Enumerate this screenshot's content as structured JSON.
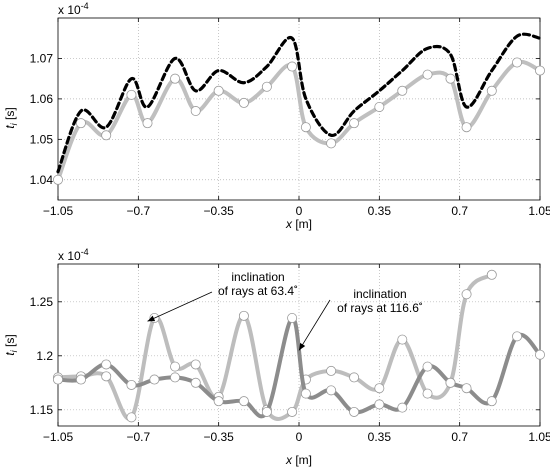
{
  "chart_data": [
    {
      "type": "line",
      "multiplier_label": "x 10",
      "multiplier_exp": "-4",
      "xlabel_var": "x",
      "xlabel_unit": " [m]",
      "ylabel_var": "t",
      "ylabel_sub": "i",
      "ylabel_unit": " [s]",
      "xlim": [
        -1.05,
        1.05
      ],
      "ylim": [
        1.035,
        1.08
      ],
      "xticks": [
        -1.05,
        -0.7,
        -0.35,
        0,
        0.35,
        0.7,
        1.05
      ],
      "xtick_labels": [
        "−1.05",
        "−0.7",
        "−0.35",
        "0",
        "0.35",
        "0.7",
        "1.05"
      ],
      "yticks": [
        1.04,
        1.05,
        1.06,
        1.07
      ],
      "ytick_labels": [
        "1.04",
        "1.05",
        "1.06",
        "1.07"
      ],
      "grid": true,
      "series": [
        {
          "style": "dashed-black",
          "color": "#000000",
          "x": [
            -1.05,
            -0.95,
            -0.84,
            -0.73,
            -0.66,
            -0.54,
            -0.45,
            -0.35,
            -0.24,
            -0.14,
            -0.03,
            0.03,
            0.14,
            0.24,
            0.35,
            0.45,
            0.56,
            0.66,
            0.73,
            0.84,
            0.95,
            1.05
          ],
          "values": [
            1.042,
            1.057,
            1.053,
            1.065,
            1.058,
            1.07,
            1.062,
            1.067,
            1.064,
            1.068,
            1.075,
            1.06,
            1.051,
            1.057,
            1.062,
            1.067,
            1.0725,
            1.071,
            1.058,
            1.067,
            1.0755,
            1.075
          ]
        },
        {
          "style": "solid-gray-markers",
          "color": "#bfbfbf",
          "x": [
            -1.05,
            -0.95,
            -0.84,
            -0.73,
            -0.66,
            -0.54,
            -0.45,
            -0.35,
            -0.24,
            -0.14,
            -0.03,
            0.03,
            0.14,
            0.24,
            0.35,
            0.45,
            0.56,
            0.66,
            0.73,
            0.84,
            0.95,
            1.05
          ],
          "values": [
            1.04,
            1.054,
            1.051,
            1.061,
            1.054,
            1.065,
            1.057,
            1.062,
            1.059,
            1.063,
            1.068,
            1.053,
            1.049,
            1.054,
            1.058,
            1.062,
            1.066,
            1.065,
            1.053,
            1.062,
            1.069,
            1.067
          ]
        }
      ]
    },
    {
      "type": "line",
      "multiplier_label": "x 10",
      "multiplier_exp": "-4",
      "xlabel_var": "x",
      "xlabel_unit": " [m]",
      "ylabel_var": "t",
      "ylabel_sub": "i",
      "ylabel_unit": " [s]",
      "xlim": [
        -1.05,
        1.05
      ],
      "ylim": [
        1.135,
        1.285
      ],
      "xticks": [
        -1.05,
        -0.7,
        -0.35,
        0,
        0.35,
        0.7,
        1.05
      ],
      "xtick_labels": [
        "−1.05",
        "−0.7",
        "−0.35",
        "0",
        "0.35",
        "0.7",
        "1.05"
      ],
      "yticks": [
        1.15,
        1.2,
        1.25
      ],
      "ytick_labels": [
        "1.15",
        "1.2",
        "1.25"
      ],
      "grid": true,
      "series": [
        {
          "style": "solid-lightgray-markers",
          "color": "#bdbdbd",
          "x": [
            -1.05,
            -0.95,
            -0.84,
            -0.73,
            -0.63,
            -0.54,
            -0.45,
            -0.35,
            -0.24,
            -0.14,
            -0.03,
            0.03,
            0.14,
            0.24,
            0.35,
            0.45,
            0.56,
            0.66,
            0.73,
            0.84
          ],
          "values": [
            1.18,
            1.181,
            1.181,
            1.143,
            1.235,
            1.19,
            1.192,
            1.162,
            1.237,
            1.15,
            1.148,
            1.178,
            1.186,
            1.18,
            1.17,
            1.215,
            1.165,
            1.175,
            1.257,
            1.275
          ]
        },
        {
          "style": "solid-darkgray-markers",
          "color": "#8c8c8c",
          "x": [
            -1.05,
            -0.95,
            -0.84,
            -0.73,
            -0.63,
            -0.54,
            -0.45,
            -0.35,
            -0.24,
            -0.14,
            -0.03,
            0.03,
            0.14,
            0.24,
            0.35,
            0.45,
            0.56,
            0.66,
            0.73,
            0.84,
            0.95,
            1.05
          ],
          "values": [
            1.178,
            1.178,
            1.192,
            1.173,
            1.178,
            1.18,
            1.175,
            1.158,
            1.158,
            1.148,
            1.235,
            1.165,
            1.168,
            1.148,
            1.155,
            1.152,
            1.19,
            1.175,
            1.17,
            1.158,
            1.218,
            1.201
          ]
        }
      ],
      "annotations": [
        {
          "line1": "inclination",
          "line2": "of rays at 63.4˚",
          "target_x": -0.66,
          "target_y": 1.232
        },
        {
          "line1": "inclination",
          "line2": "of rays at 116.6˚",
          "target_x": 0.0,
          "target_y": 1.205
        }
      ]
    }
  ]
}
